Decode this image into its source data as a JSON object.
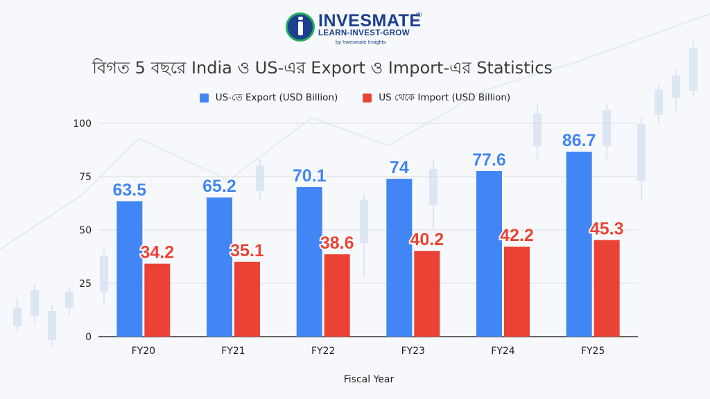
{
  "logo": {
    "name": "INVESMATE",
    "registered": "®",
    "tagline": "LEARN-INVEST-GROW",
    "sub": "by Invesmate Insights"
  },
  "colors": {
    "export": "#4285f4",
    "import": "#ea4335",
    "grid": "#dadce0",
    "text": "#222222"
  },
  "chart_data": {
    "type": "bar",
    "title": "বিগত 5 বছরে India ও US-এর Export ও Import-এর Statistics",
    "xlabel": "Fiscal Year",
    "ylabel": "",
    "ylim": [
      0,
      100
    ],
    "yticks": [
      0,
      25,
      50,
      75,
      100
    ],
    "categories": [
      "FY20",
      "FY21",
      "FY22",
      "FY23",
      "FY24",
      "FY25"
    ],
    "series": [
      {
        "name": "US-তে Export (USD Billion)",
        "values": [
          63.5,
          65.2,
          70.1,
          74,
          77.6,
          86.7
        ],
        "labels": [
          "63.5",
          "65.2",
          "70.1",
          "74",
          "77.6",
          "86.7"
        ]
      },
      {
        "name": "US থেকে Import (USD Billion)",
        "values": [
          34.2,
          35.1,
          38.6,
          40.2,
          42.2,
          45.3
        ],
        "labels": [
          "34.2",
          "35.1",
          "38.6",
          "40.2",
          "42.2",
          "45.3"
        ]
      }
    ],
    "legend_position": "top-center",
    "grid": true
  }
}
